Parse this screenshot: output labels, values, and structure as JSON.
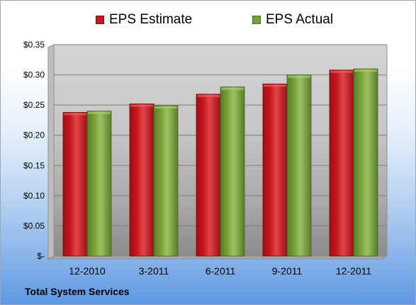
{
  "footer": {
    "company": "Total System Services"
  },
  "colors": {
    "estimate": "#c8161d",
    "actual": "#77a13a"
  },
  "chart_data": {
    "type": "bar",
    "title": "",
    "xlabel": "",
    "ylabel": "",
    "categories": [
      "12-2010",
      "3-2011",
      "6-2011",
      "9-2011",
      "12-2011"
    ],
    "series": [
      {
        "name": "EPS Estimate",
        "values": [
          0.238,
          0.252,
          0.268,
          0.285,
          0.308
        ]
      },
      {
        "name": "EPS Actual",
        "values": [
          0.24,
          0.249,
          0.28,
          0.3,
          0.31
        ]
      }
    ],
    "ylim": [
      0,
      0.35
    ],
    "yticks": [
      0,
      0.05,
      0.1,
      0.15,
      0.2,
      0.25,
      0.3,
      0.35
    ],
    "ytick_labels": [
      "$-",
      "$0.05",
      "$0.10",
      "$0.15",
      "$0.20",
      "$0.25",
      "$0.30",
      "$0.35"
    ],
    "legend": "top",
    "grid": true
  }
}
